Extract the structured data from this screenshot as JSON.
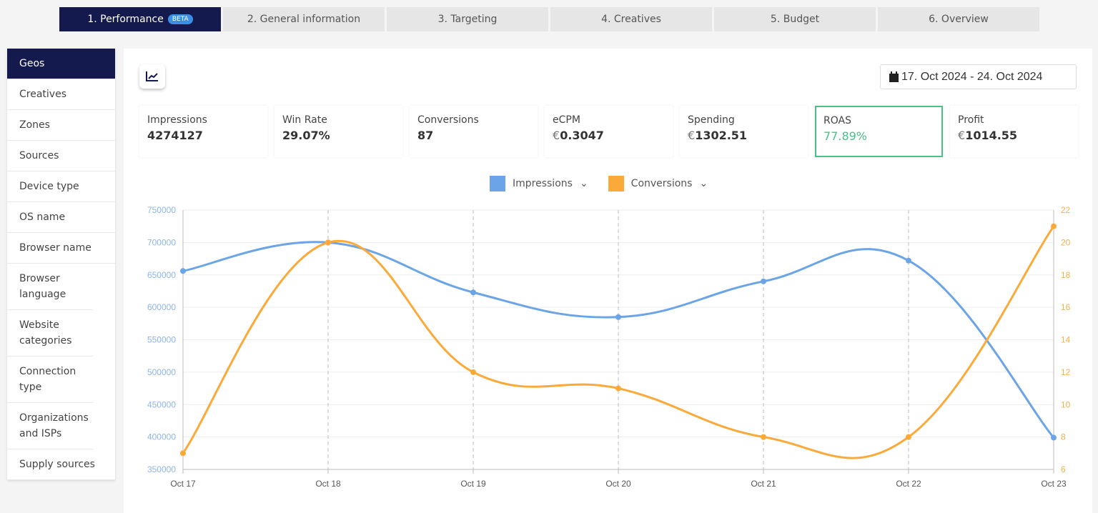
{
  "steps": [
    {
      "label": "1. Performance",
      "badge": "BETA"
    },
    {
      "label": "2. General information"
    },
    {
      "label": "3. Targeting"
    },
    {
      "label": "4. Creatives"
    },
    {
      "label": "5. Budget"
    },
    {
      "label": "6. Overview"
    }
  ],
  "sidebar": {
    "items": [
      "Geos",
      "Creatives",
      "Zones",
      "Sources",
      "Device type",
      "OS name",
      "Browser name",
      "Browser language",
      "Website categories",
      "Connection type",
      "Organizations and ISPs",
      "Supply sources"
    ]
  },
  "date_range": "17. Oct 2024 - 24. Oct 2024",
  "cards": [
    {
      "label": "Impressions",
      "value": "4274127"
    },
    {
      "label": "Win Rate",
      "value": "29.07%"
    },
    {
      "label": "Conversions",
      "value": "87"
    },
    {
      "label": "eCPM",
      "currency": "€",
      "value": "0.3047"
    },
    {
      "label": "Spending",
      "currency": "€",
      "value": "1302.51"
    },
    {
      "label": "ROAS",
      "value": "77.89%",
      "selected": true
    },
    {
      "label": "Profit",
      "currency": "€",
      "value": "1014.55"
    }
  ],
  "colors": {
    "accent": "#141a4e",
    "impressions": "#6ba5e7",
    "conversions": "#fbaa3a",
    "roas": "#4cbf86"
  },
  "chart_data": {
    "type": "line",
    "categories": [
      "Oct 17",
      "Oct 18",
      "Oct 19",
      "Oct 20",
      "Oct 21",
      "Oct 22",
      "Oct 23"
    ],
    "series": [
      {
        "name": "Impressions",
        "axis": "left",
        "values": [
          656000,
          700000,
          623000,
          585000,
          640000,
          672000,
          399000
        ]
      },
      {
        "name": "Conversions",
        "axis": "right",
        "values": [
          7,
          20,
          12,
          11,
          8,
          8,
          21
        ]
      }
    ],
    "y_left": {
      "range": [
        350000,
        750000
      ],
      "ticks": [
        350000,
        400000,
        450000,
        500000,
        550000,
        600000,
        650000,
        700000,
        750000
      ]
    },
    "y_right": {
      "range": [
        6,
        22
      ],
      "ticks": [
        6,
        8,
        10,
        12,
        14,
        16,
        18,
        20,
        22
      ]
    },
    "legend": "top-center",
    "grid": true
  }
}
